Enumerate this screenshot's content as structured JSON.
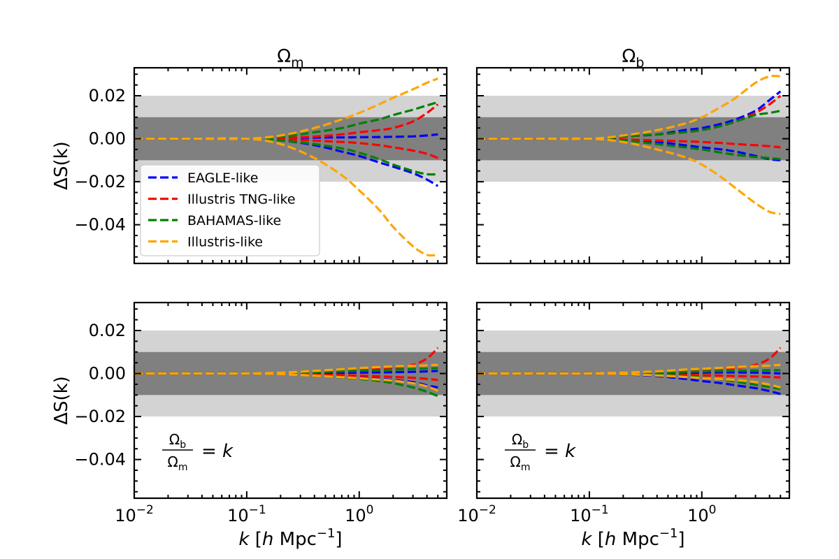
{
  "chart_data": {
    "type": "line",
    "ylabel_text": "ΔS(k)",
    "xlabel": {
      "var": "k",
      "bracket_open": "[",
      "h": "h",
      "unit": "Mpc",
      "exp": "−1",
      "bracket_close": "]"
    },
    "xscale": "log",
    "xlim": [
      0.01,
      6.0
    ],
    "ylim": [
      -0.058,
      0.033
    ],
    "xticks": [
      {
        "base": "10",
        "exp": "−2",
        "value": 0.01
      },
      {
        "base": "10",
        "exp": "−1",
        "value": 0.1
      },
      {
        "base": "10",
        "exp": "0",
        "value": 1.0
      }
    ],
    "yticks": [
      {
        "label": "0.02",
        "value": 0.02
      },
      {
        "label": "0.00",
        "value": 0.0
      },
      {
        "label": "−0.02",
        "value": -0.02
      },
      {
        "label": "−0.04",
        "value": -0.04
      }
    ],
    "bands": [
      {
        "range": [
          -0.02,
          0.02
        ],
        "color": "#d3d3d3"
      },
      {
        "range": [
          -0.01,
          0.01
        ],
        "color": "#808080"
      }
    ],
    "legend": {
      "location": "center-left of top-left panel",
      "entries": [
        {
          "name": "EAGLE-like",
          "color": "#0000ff"
        },
        {
          "name": "Illustris TNG-like",
          "color": "#ff0000"
        },
        {
          "name": "BAHAMAS-like",
          "color": "#008000"
        },
        {
          "name": "Illustris-like",
          "color": "#ffa500"
        }
      ]
    },
    "k": [
      0.01,
      0.03,
      0.1,
      0.2,
      0.4,
      0.7,
      1.0,
      1.5,
      2.0,
      3.0,
      4.0,
      5.0
    ],
    "panels": [
      {
        "title": {
          "sym": "Ω",
          "sub": "m"
        },
        "series": [
          {
            "name": "EAGLE-like",
            "color": "#0000ff",
            "band": "upper",
            "values": [
              0,
              0,
              0,
              0.0002,
              0.0005,
              0.0006,
              0.0007,
              0.0008,
              0.0009,
              0.0011,
              0.0015,
              0.002
            ]
          },
          {
            "name": "EAGLE-like",
            "color": "#0000ff",
            "band": "lower",
            "values": [
              0,
              0,
              0,
              -0.0008,
              -0.003,
              -0.006,
              -0.008,
              -0.011,
              -0.013,
              -0.016,
              -0.019,
              -0.022
            ]
          },
          {
            "name": "Illustris TNG-like",
            "color": "#ff0000",
            "band": "upper",
            "values": [
              0,
              0,
              0,
              0.0003,
              0.001,
              0.002,
              0.003,
              0.004,
              0.005,
              0.008,
              0.012,
              0.016
            ]
          },
          {
            "name": "Illustris TNG-like",
            "color": "#ff0000",
            "band": "lower",
            "values": [
              0,
              0,
              0,
              -0.0003,
              -0.0009,
              -0.0015,
              -0.002,
              -0.003,
              -0.004,
              -0.0055,
              -0.007,
              -0.009
            ]
          },
          {
            "name": "BAHAMAS-like",
            "color": "#008000",
            "band": "upper",
            "values": [
              0,
              0,
              0,
              0.0008,
              0.003,
              0.005,
              0.007,
              0.009,
              0.011,
              0.0135,
              0.0155,
              0.017
            ]
          },
          {
            "name": "BAHAMAS-like",
            "color": "#008000",
            "band": "lower",
            "values": [
              0,
              0,
              0,
              -0.0008,
              -0.0025,
              -0.0045,
              -0.0065,
              -0.0095,
              -0.012,
              -0.015,
              -0.0165,
              -0.0165
            ]
          },
          {
            "name": "Illustris-like",
            "color": "#ffa500",
            "band": "upper",
            "values": [
              0,
              0,
              0,
              0.0015,
              0.005,
              0.009,
              0.012,
              0.016,
              0.019,
              0.023,
              0.026,
              0.028
            ]
          },
          {
            "name": "Illustris-like",
            "color": "#ffa500",
            "band": "lower",
            "values": [
              0,
              0,
              0,
              -0.0025,
              -0.009,
              -0.017,
              -0.024,
              -0.033,
              -0.041,
              -0.05,
              -0.054,
              -0.054
            ]
          }
        ]
      },
      {
        "title": {
          "sym": "Ω",
          "sub": "b"
        },
        "series": [
          {
            "name": "EAGLE-like",
            "color": "#0000ff",
            "band": "upper",
            "values": [
              0,
              0,
              0,
              0.001,
              0.002,
              0.004,
              0.005,
              0.007,
              0.009,
              0.013,
              0.018,
              0.022
            ]
          },
          {
            "name": "EAGLE-like",
            "color": "#0000ff",
            "band": "lower",
            "values": [
              0,
              0,
              0,
              -0.0005,
              -0.0015,
              -0.003,
              -0.004,
              -0.005,
              -0.006,
              -0.008,
              -0.0095,
              -0.01
            ]
          },
          {
            "name": "Illustris TNG-like",
            "color": "#ff0000",
            "band": "upper",
            "values": [
              0,
              0,
              0,
              0.001,
              0.002,
              0.003,
              0.004,
              0.006,
              0.008,
              0.012,
              0.016,
              0.02
            ]
          },
          {
            "name": "Illustris TNG-like",
            "color": "#ff0000",
            "band": "lower",
            "values": [
              0,
              0,
              0,
              -0.0003,
              -0.0008,
              -0.0012,
              -0.0015,
              -0.002,
              -0.0025,
              -0.003,
              -0.0035,
              -0.004
            ]
          },
          {
            "name": "BAHAMAS-like",
            "color": "#008000",
            "band": "upper",
            "values": [
              0,
              0,
              0,
              0.001,
              0.002,
              0.003,
              0.004,
              0.006,
              0.008,
              0.011,
              0.012,
              0.013
            ]
          },
          {
            "name": "BAHAMAS-like",
            "color": "#008000",
            "band": "lower",
            "values": [
              0,
              0,
              0,
              -0.0008,
              -0.0025,
              -0.004,
              -0.005,
              -0.0065,
              -0.0075,
              -0.0085,
              -0.009,
              -0.0095
            ]
          },
          {
            "name": "Illustris-like",
            "color": "#ffa500",
            "band": "upper",
            "values": [
              0,
              0,
              0,
              0.0015,
              0.004,
              0.007,
              0.01,
              0.015,
              0.019,
              0.026,
              0.029,
              0.029
            ]
          },
          {
            "name": "Illustris-like",
            "color": "#ffa500",
            "band": "lower",
            "values": [
              0,
              0,
              0,
              -0.0015,
              -0.005,
              -0.0085,
              -0.012,
              -0.018,
              -0.023,
              -0.03,
              -0.034,
              -0.035
            ]
          }
        ]
      },
      {
        "annotation": {
          "num_sym": "Ω",
          "num_sub": "b",
          "den_sym": "Ω",
          "den_sub": "m",
          "rhs": "= k"
        },
        "series": [
          {
            "name": "EAGLE-like",
            "color": "#0000ff",
            "band": "upper",
            "values": [
              0,
              0,
              0,
              0.0001,
              0.0002,
              0.0003,
              0.0004,
              0.0005,
              0.0006,
              0.0008,
              0.001,
              0.0012
            ]
          },
          {
            "name": "EAGLE-like",
            "color": "#0000ff",
            "band": "lower",
            "values": [
              0,
              0,
              0,
              -0.0003,
              -0.0008,
              -0.0015,
              -0.002,
              -0.0025,
              -0.003,
              -0.004,
              -0.0055,
              -0.0065
            ]
          },
          {
            "name": "Illustris TNG-like",
            "color": "#ff0000",
            "band": "upper",
            "values": [
              0,
              0,
              0,
              0.0003,
              0.0008,
              0.0012,
              0.0015,
              0.002,
              0.0025,
              0.004,
              0.007,
              0.012
            ]
          },
          {
            "name": "Illustris TNG-like",
            "color": "#ff0000",
            "band": "lower",
            "values": [
              0,
              0,
              0,
              -0.0002,
              -0.0005,
              -0.0008,
              -0.001,
              -0.0013,
              -0.0016,
              -0.002,
              -0.0025,
              -0.003
            ]
          },
          {
            "name": "BAHAMAS-like",
            "color": "#008000",
            "band": "upper",
            "values": [
              0,
              0,
              0,
              0.0002,
              0.0006,
              0.001,
              0.0013,
              0.0016,
              0.0018,
              0.0021,
              0.0023,
              0.0025
            ]
          },
          {
            "name": "BAHAMAS-like",
            "color": "#008000",
            "band": "lower",
            "values": [
              0,
              0,
              0,
              -0.0003,
              -0.001,
              -0.0018,
              -0.0025,
              -0.0035,
              -0.0045,
              -0.0065,
              -0.0085,
              -0.0105
            ]
          },
          {
            "name": "Illustris-like",
            "color": "#ffa500",
            "band": "upper",
            "values": [
              0,
              0,
              0,
              0.0004,
              0.0012,
              0.002,
              0.0025,
              0.003,
              0.0033,
              0.0036,
              0.0038,
              0.004
            ]
          },
          {
            "name": "Illustris-like",
            "color": "#ffa500",
            "band": "lower",
            "values": [
              0,
              0,
              0,
              -0.0003,
              -0.001,
              -0.0017,
              -0.0022,
              -0.0028,
              -0.0033,
              -0.0045,
              -0.006,
              -0.008
            ]
          }
        ]
      },
      {
        "annotation": {
          "num_sym": "Ω",
          "num_sub": "b",
          "den_sym": "Ω",
          "den_sub": "m",
          "rhs": "= k"
        },
        "series": [
          {
            "name": "EAGLE-like",
            "color": "#0000ff",
            "band": "upper",
            "values": [
              0,
              0,
              0,
              0.0001,
              0.0002,
              0.0003,
              0.0004,
              0.0005,
              0.0005,
              0.0004,
              0.0002,
              0.0
            ]
          },
          {
            "name": "EAGLE-like",
            "color": "#0000ff",
            "band": "lower",
            "values": [
              0,
              0,
              0,
              -0.0004,
              -0.0012,
              -0.0025,
              -0.0035,
              -0.0045,
              -0.0055,
              -0.0068,
              -0.0082,
              -0.0095
            ]
          },
          {
            "name": "Illustris TNG-like",
            "color": "#ff0000",
            "band": "upper",
            "values": [
              0,
              0,
              0,
              0.0003,
              0.0008,
              0.0012,
              0.0015,
              0.002,
              0.0025,
              0.004,
              0.007,
              0.012
            ]
          },
          {
            "name": "Illustris TNG-like",
            "color": "#ff0000",
            "band": "lower",
            "values": [
              0,
              0,
              0,
              -0.0002,
              -0.0004,
              -0.0006,
              -0.0008,
              -0.001,
              -0.0012,
              -0.0014,
              -0.0016,
              -0.0018
            ]
          },
          {
            "name": "BAHAMAS-like",
            "color": "#008000",
            "band": "upper",
            "values": [
              0,
              0,
              0,
              0.0002,
              0.0005,
              0.0008,
              0.001,
              0.0012,
              0.0013,
              0.0014,
              0.0015,
              0.0015
            ]
          },
          {
            "name": "BAHAMAS-like",
            "color": "#008000",
            "band": "lower",
            "values": [
              0,
              0,
              0,
              -0.0002,
              -0.0006,
              -0.0012,
              -0.0018,
              -0.0028,
              -0.0038,
              -0.0052,
              -0.0063,
              -0.0072
            ]
          },
          {
            "name": "Illustris-like",
            "color": "#ffa500",
            "band": "upper",
            "values": [
              0,
              0,
              0,
              0.0004,
              0.001,
              0.0018,
              0.0022,
              0.0026,
              0.003,
              0.0034,
              0.0037,
              0.004
            ]
          },
          {
            "name": "Illustris-like",
            "color": "#ffa500",
            "band": "lower",
            "values": [
              0,
              0,
              0,
              -0.0003,
              -0.0009,
              -0.0016,
              -0.0021,
              -0.0026,
              -0.003,
              -0.004,
              -0.0052,
              -0.0065
            ]
          }
        ]
      }
    ]
  }
}
